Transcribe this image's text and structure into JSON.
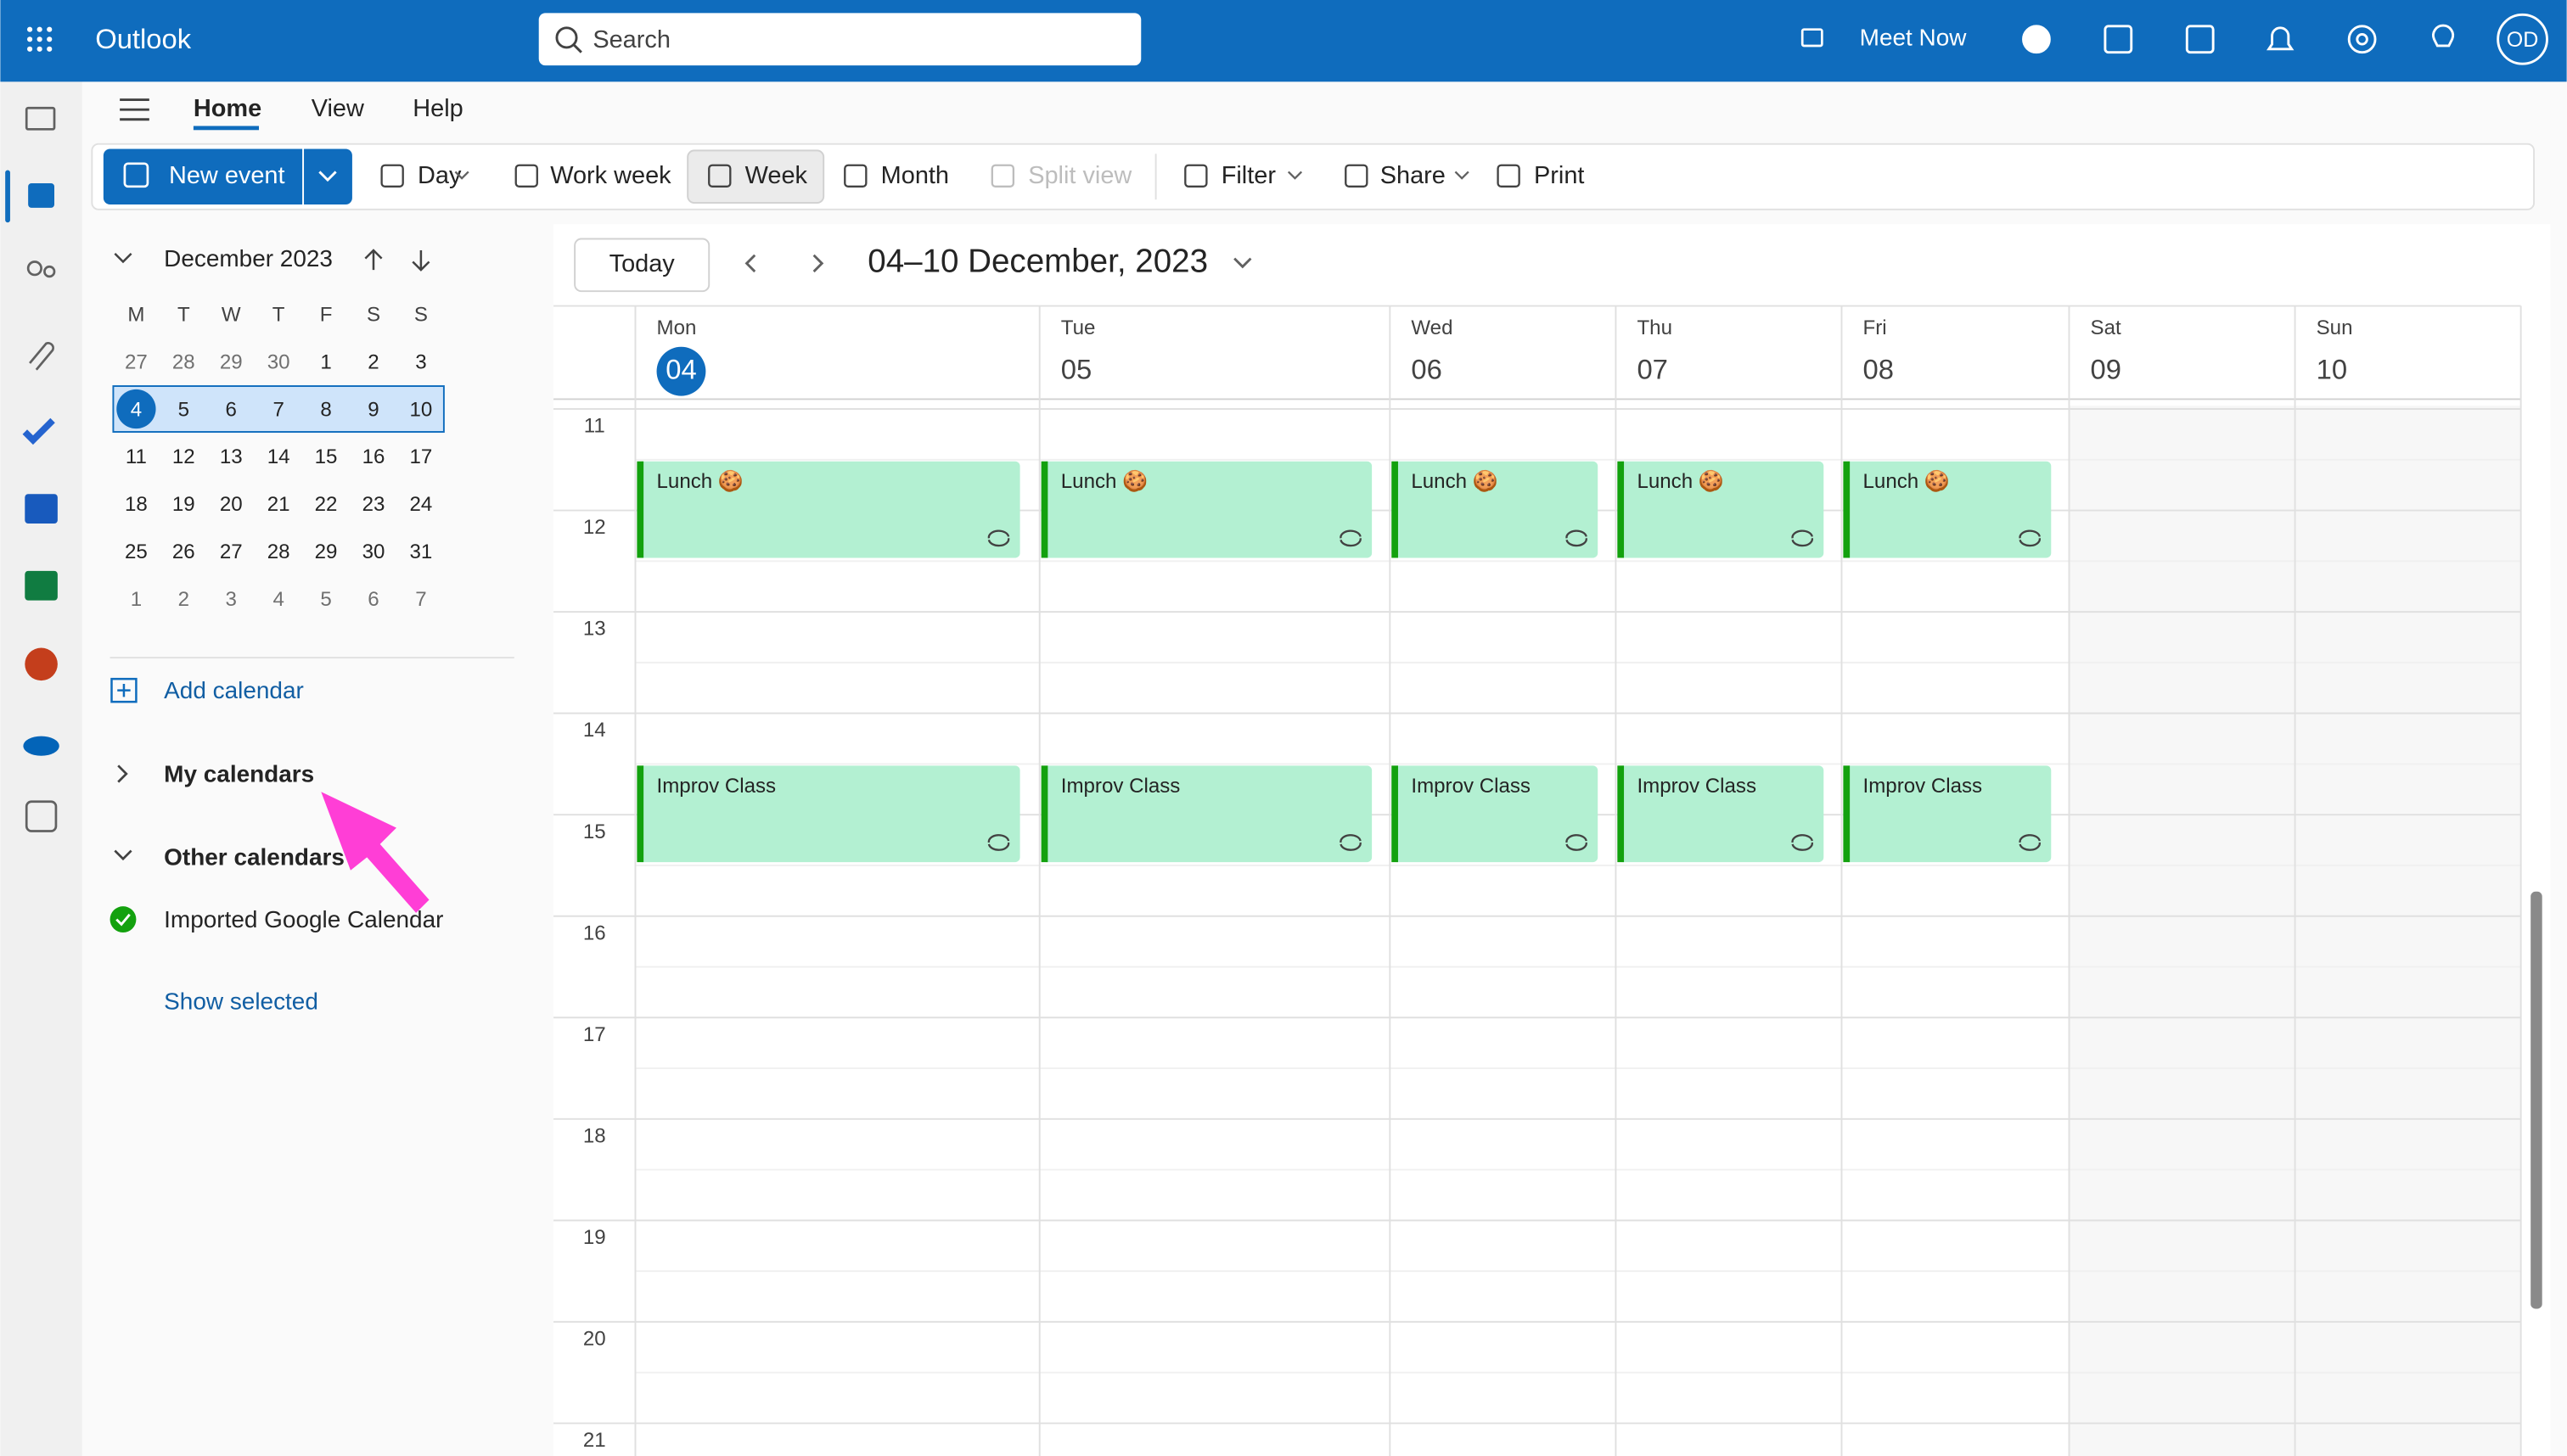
{
  "app": {
    "name": "Outlook",
    "search": "Search",
    "meet_now": "Meet Now",
    "avatar": "OD"
  },
  "tabs": [
    "Home",
    "View",
    "Help"
  ],
  "toolbar": {
    "new_event": "New event",
    "buttons": [
      "Day",
      "Work week",
      "Week",
      "Month",
      "Split view",
      "Filter",
      "Share",
      "Print"
    ]
  },
  "mini_calendar": {
    "month": "December 2023",
    "weekdays": [
      "M",
      "T",
      "W",
      "T",
      "F",
      "S",
      "S"
    ],
    "weeks": [
      [
        27,
        28,
        29,
        30,
        1,
        2,
        3
      ],
      [
        4,
        5,
        6,
        7,
        8,
        9,
        10
      ],
      [
        11,
        12,
        13,
        14,
        15,
        16,
        17
      ],
      [
        18,
        19,
        20,
        21,
        22,
        23,
        24
      ],
      [
        25,
        26,
        27,
        28,
        29,
        30,
        31
      ],
      [
        1,
        2,
        3,
        4,
        5,
        6,
        7
      ]
    ]
  },
  "sidebar": {
    "add_calendar": "Add calendar",
    "my_calendars": "My calendars",
    "other_calendars": "Other calendars",
    "calendars": [
      "Imported Google Calendar"
    ],
    "show_selected": "Show selected"
  },
  "calendar": {
    "today": "Today",
    "range": "04–10 December, 2023",
    "days": [
      {
        "name": "Mon",
        "date": "04",
        "events": [
          {
            "title": "Lunch 🍪"
          },
          {
            "title": "Improv Class"
          }
        ]
      },
      {
        "name": "Tue",
        "date": "05",
        "events": [
          {
            "title": "Lunch 🍪"
          },
          {
            "title": "Improv Class"
          }
        ]
      },
      {
        "name": "Wed",
        "date": "06",
        "events": [
          {
            "title": "Lunch 🍪"
          },
          {
            "title": "Improv Class"
          }
        ]
      },
      {
        "name": "Thu",
        "date": "07",
        "events": [
          {
            "title": "Lunch 🍪"
          },
          {
            "title": "Improv Class"
          }
        ]
      },
      {
        "name": "Fri",
        "date": "08",
        "events": [
          {
            "title": "Lunch 🍪"
          },
          {
            "title": "Improv Class"
          }
        ]
      },
      {
        "name": "Sat",
        "date": "09",
        "events": []
      },
      {
        "name": "Sun",
        "date": "10",
        "events": []
      }
    ],
    "hours": [
      "11",
      "12",
      "13",
      "14",
      "15",
      "16",
      "17",
      "18",
      "19",
      "20",
      "21"
    ]
  }
}
